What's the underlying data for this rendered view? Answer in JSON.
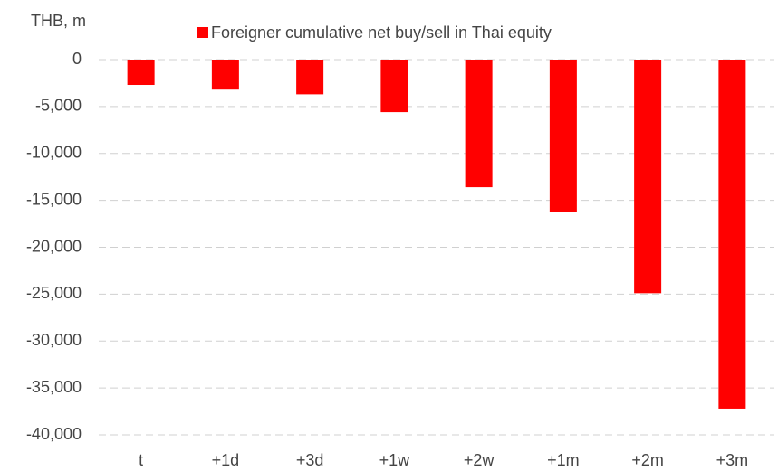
{
  "chart_data": {
    "type": "bar",
    "y_axis_label": "THB, m",
    "legend": "top",
    "series": [
      {
        "name": "Foreigner cumulative net buy/sell in Thai equity",
        "color": "#ff0000",
        "values": [
          -2700,
          -3200,
          -3700,
          -5600,
          -13600,
          -16200,
          -24900,
          -37200
        ]
      }
    ],
    "categories": [
      "t",
      "+1d",
      "+3d",
      "+1w",
      "+2w",
      "+1m",
      "+2m",
      "+3m"
    ],
    "ylim": [
      -40000,
      0
    ],
    "yticks": [
      0,
      {
        "value": -5000,
        "label": "-5,000"
      },
      {
        "value": -10000,
        "label": "-10,000"
      },
      {
        "value": -15000,
        "label": "-15,000"
      },
      {
        "value": -20000,
        "label": "-20,000"
      },
      {
        "value": -25000,
        "label": "-25,000"
      },
      {
        "value": -30000,
        "label": "-30,000"
      },
      {
        "value": -35000,
        "label": "-35,000"
      },
      {
        "value": -40000,
        "label": "-40,000"
      }
    ],
    "grid": true
  }
}
